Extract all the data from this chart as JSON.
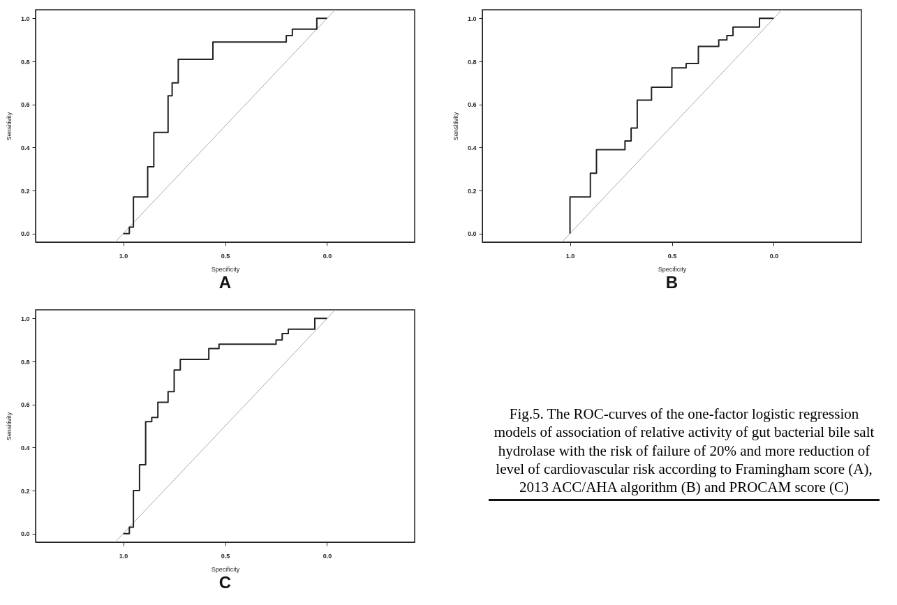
{
  "chart_data": [
    {
      "type": "step",
      "title": "A",
      "xlabel": "Specificity",
      "ylabel": "Sensitivity",
      "xlim": [
        1.43,
        -0.43
      ],
      "ylim": [
        -0.04,
        1.04
      ],
      "xticks": [
        {
          "value": 1,
          "label": "1.0"
        },
        {
          "value": 0.5,
          "label": "0.5"
        },
        {
          "value": 0,
          "label": "0.0"
        }
      ],
      "yticks": [
        {
          "value": 0,
          "label": "0.0"
        },
        {
          "value": 0.2,
          "label": "0.2"
        },
        {
          "value": 0.4,
          "label": "0.4"
        },
        {
          "value": 0.6,
          "label": "0.6"
        },
        {
          "value": 0.8,
          "label": "0.8"
        },
        {
          "value": 1,
          "label": "1.0"
        }
      ],
      "series": [
        {
          "type": "line",
          "color": "#aaaaaa",
          "x": [
            1.04,
            -0.04
          ],
          "values": [
            -0.04,
            1.04
          ]
        },
        {
          "type": "step",
          "color": "#222222",
          "x": [
            1.0,
            0.97,
            0.95,
            0.88,
            0.85,
            0.78,
            0.76,
            0.73,
            0.56,
            0.2,
            0.17,
            0.05,
            0.0
          ],
          "values": [
            0.0,
            0.03,
            0.17,
            0.31,
            0.47,
            0.64,
            0.7,
            0.81,
            0.89,
            0.92,
            0.95,
            1.0,
            1.0
          ]
        }
      ]
    },
    {
      "type": "step",
      "title": "B",
      "xlabel": "Specificity",
      "ylabel": "Sensitivity",
      "xlim": [
        1.43,
        -0.43
      ],
      "ylim": [
        -0.04,
        1.04
      ],
      "xticks": [
        {
          "value": 1,
          "label": "1.0"
        },
        {
          "value": 0.5,
          "label": "0.5"
        },
        {
          "value": 0,
          "label": "0.0"
        }
      ],
      "yticks": [
        {
          "value": 0,
          "label": "0.0"
        },
        {
          "value": 0.2,
          "label": "0.2"
        },
        {
          "value": 0.4,
          "label": "0.4"
        },
        {
          "value": 0.6,
          "label": "0.6"
        },
        {
          "value": 0.8,
          "label": "0.8"
        },
        {
          "value": 1,
          "label": "1.0"
        }
      ],
      "series": [
        {
          "type": "line",
          "color": "#aaaaaa",
          "x": [
            1.04,
            -0.04
          ],
          "values": [
            -0.04,
            1.04
          ]
        },
        {
          "type": "step",
          "color": "#222222",
          "x": [
            1.0,
            1.0,
            0.9,
            0.87,
            0.73,
            0.7,
            0.67,
            0.6,
            0.5,
            0.43,
            0.37,
            0.27,
            0.23,
            0.2,
            0.07,
            0.0
          ],
          "values": [
            0.0,
            0.17,
            0.28,
            0.39,
            0.43,
            0.49,
            0.62,
            0.68,
            0.77,
            0.79,
            0.87,
            0.9,
            0.92,
            0.96,
            1.0,
            1.0
          ]
        }
      ]
    },
    {
      "type": "step",
      "title": "C",
      "xlabel": "Specificity",
      "ylabel": "Sensitivity",
      "xlim": [
        1.43,
        -0.43
      ],
      "ylim": [
        -0.04,
        1.04
      ],
      "xticks": [
        {
          "value": 1,
          "label": "1.0"
        },
        {
          "value": 0.5,
          "label": "0.5"
        },
        {
          "value": 0,
          "label": "0.0"
        }
      ],
      "yticks": [
        {
          "value": 0,
          "label": "0.0"
        },
        {
          "value": 0.2,
          "label": "0.2"
        },
        {
          "value": 0.4,
          "label": "0.4"
        },
        {
          "value": 0.6,
          "label": "0.6"
        },
        {
          "value": 0.8,
          "label": "0.8"
        },
        {
          "value": 1,
          "label": "1.0"
        }
      ],
      "series": [
        {
          "type": "line",
          "color": "#aaaaaa",
          "x": [
            1.04,
            -0.04
          ],
          "values": [
            -0.04,
            1.04
          ]
        },
        {
          "type": "step",
          "color": "#222222",
          "x": [
            1.0,
            0.97,
            0.95,
            0.92,
            0.89,
            0.86,
            0.83,
            0.78,
            0.75,
            0.72,
            0.58,
            0.53,
            0.25,
            0.22,
            0.19,
            0.06,
            0.0
          ],
          "values": [
            0.0,
            0.03,
            0.2,
            0.32,
            0.52,
            0.54,
            0.61,
            0.66,
            0.76,
            0.81,
            0.86,
            0.88,
            0.9,
            0.93,
            0.95,
            1.0,
            1.0
          ]
        }
      ]
    },
    {
      "type": "other",
      "annotations": [
        "Fig.5. The ROC-curves of the one-factor logistic regression models of association of relative activity of gut bacterial bile salt hydrolase with the risk of failure of 20% and more reduction of level of cardiovascular risk according to Framingham score (A), 2013 ACC/AHA algorithm (B) and PROCAM score (C)"
      ]
    }
  ]
}
